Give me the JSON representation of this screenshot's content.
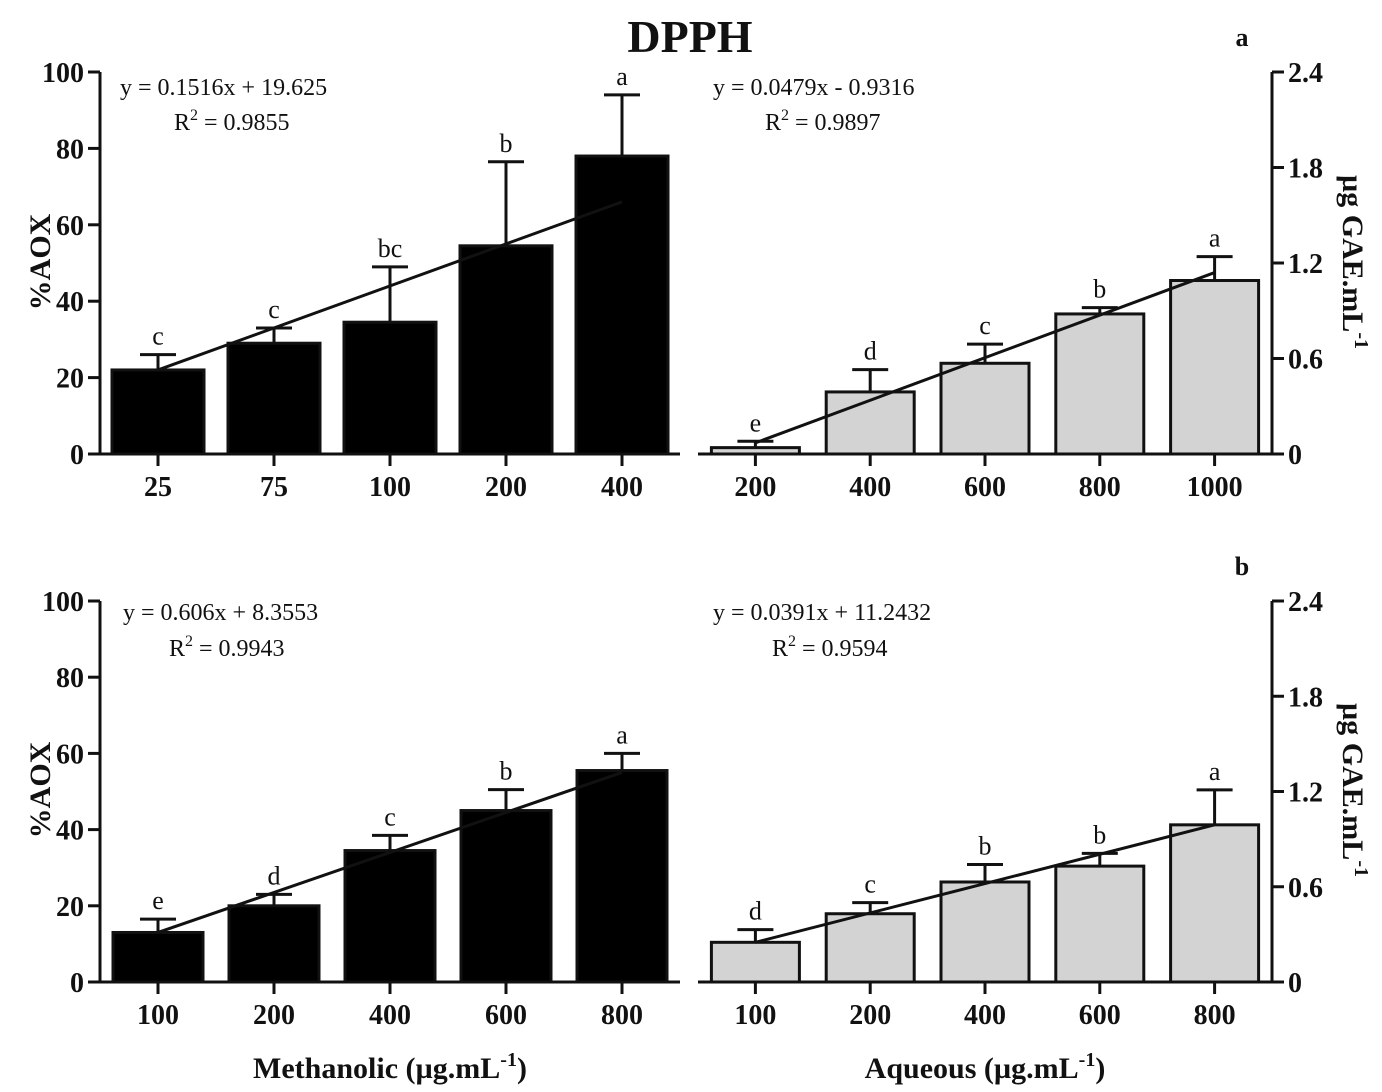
{
  "figure": {
    "title": "DPPH",
    "left_ylabel": "%AOX",
    "right_ylabel_main": "µg GAE.mL",
    "right_ylabel_sup": "-1",
    "xlabel_left_main": "Methanolic (µg.mL",
    "xlabel_left_sup": "-1",
    "xlabel_left_end": ")",
    "xlabel_right_main": "Aqueous (µg.mL",
    "xlabel_right_sup": "-1",
    "xlabel_right_end": ")"
  },
  "colors": {
    "methanolic_bar": "#000000",
    "aqueous_bar": "#d3d3d3",
    "axis": "#111111"
  },
  "chart_data": [
    {
      "type": "bar",
      "panel": "a",
      "series_name": "Methanolic",
      "categories": [
        "25",
        "75",
        "100",
        "200",
        "400"
      ],
      "values": [
        22,
        29,
        34.5,
        54.5,
        78
      ],
      "errors": [
        4,
        4,
        14.5,
        22,
        16
      ],
      "significance": [
        "c",
        "c",
        "bc",
        "b",
        "a"
      ],
      "fit": {
        "equation": "y = 0.1516x + 19.625",
        "r2_label": "R",
        "r2_sup": "2",
        "r2_value": " = 0.9855",
        "start": 22,
        "end": 66
      },
      "ylabel": "%AOX",
      "ylim": [
        0,
        100
      ],
      "yticks": [
        0,
        20,
        40,
        60,
        80,
        100
      ]
    },
    {
      "type": "bar",
      "panel": "a",
      "series_name": "Aqueous",
      "categories": [
        "200",
        "400",
        "600",
        "800",
        "1000"
      ],
      "values": [
        0.04,
        0.39,
        0.57,
        0.88,
        1.09
      ],
      "errors": [
        0.04,
        0.14,
        0.12,
        0.04,
        0.15
      ],
      "significance": [
        "e",
        "d",
        "c",
        "b",
        "a"
      ],
      "fit": {
        "equation": "y = 0.0479x - 0.9316",
        "r2_label": "R",
        "r2_sup": "2",
        "r2_value": " = 0.9897",
        "start": 0.07,
        "end": 1.14
      },
      "ylabel": "µg GAE.mL-1",
      "ylim": [
        0,
        2.4
      ],
      "yticks": [
        0,
        0.6,
        1.2,
        1.8,
        2.4
      ],
      "ytick_labels": [
        "0",
        "0.6",
        "1.2",
        "1.8",
        "2.4"
      ]
    },
    {
      "type": "bar",
      "panel": "b",
      "series_name": "Methanolic",
      "categories": [
        "100",
        "200",
        "400",
        "600",
        "800"
      ],
      "values": [
        13,
        20,
        34.5,
        45,
        55.5
      ],
      "errors": [
        3.5,
        3,
        4,
        5.5,
        4.5
      ],
      "significance": [
        "e",
        "d",
        "c",
        "b",
        "a"
      ],
      "fit": {
        "equation": "y = 0.606x + 8.3553",
        "r2_label": "R",
        "r2_sup": "2",
        "r2_value": " = 0.9943",
        "start": 13,
        "end": 55
      },
      "ylabel": "%AOX",
      "ylim": [
        0,
        100
      ],
      "yticks": [
        0,
        20,
        40,
        60,
        80,
        100
      ]
    },
    {
      "type": "bar",
      "panel": "b",
      "series_name": "Aqueous",
      "categories": [
        "100",
        "200",
        "400",
        "600",
        "800"
      ],
      "values": [
        0.25,
        0.43,
        0.63,
        0.73,
        0.99
      ],
      "errors": [
        0.08,
        0.07,
        0.11,
        0.08,
        0.22
      ],
      "significance": [
        "d",
        "c",
        "b",
        "b",
        "a"
      ],
      "fit": {
        "equation": "y = 0.0391x + 11.2432",
        "r2_label": "R",
        "r2_sup": "2",
        "r2_value": " = 0.9594",
        "start": 0.25,
        "end": 0.99
      },
      "ylabel": "µg GAE.mL-1",
      "ylim": [
        0,
        2.4
      ],
      "yticks": [
        0,
        0.6,
        1.2,
        1.8,
        2.4
      ],
      "ytick_labels": [
        "0",
        "0.6",
        "1.2",
        "1.8",
        "2.4"
      ]
    }
  ]
}
